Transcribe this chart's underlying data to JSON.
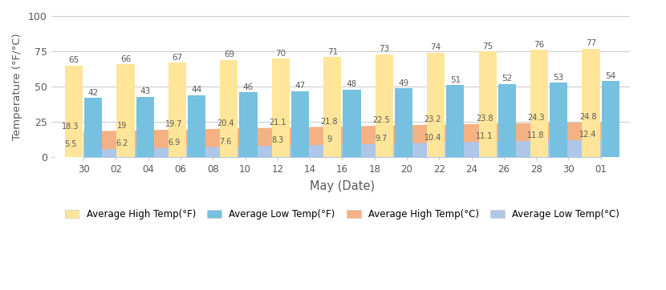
{
  "xtick_labels": [
    "30",
    "02",
    "04",
    "06",
    "08",
    "10",
    "12",
    "14",
    "16",
    "18",
    "20",
    "22",
    "24",
    "26",
    "28",
    "30",
    "01"
  ],
  "high_f": [
    65,
    66,
    67,
    69,
    70,
    71,
    73,
    74,
    75,
    76,
    77
  ],
  "low_f": [
    42,
    43,
    44,
    46,
    47,
    48,
    49,
    51,
    52,
    53,
    54
  ],
  "high_c": [
    18.3,
    19.0,
    19.7,
    20.4,
    21.1,
    21.8,
    22.5,
    23.2,
    23.8,
    24.3,
    24.8
  ],
  "low_c": [
    5.5,
    6.2,
    6.9,
    7.6,
    8.3,
    9.0,
    9.7,
    10.4,
    11.1,
    11.8,
    12.4
  ],
  "color_high_f": "#FFE599",
  "color_low_f": "#76C0E0",
  "color_high_c": "#F4B183",
  "color_low_c": "#AEC6E8",
  "ylabel": "Temperature (°F/°C)",
  "xlabel": "May (Date)",
  "ylim": [
    0,
    100
  ],
  "yticks": [
    0,
    25,
    50,
    75,
    100
  ],
  "legend_labels": [
    "Average High Temp(°F)",
    "Average Low Temp(°F)",
    "Average High Temp(°C)",
    "Average Low Temp(°C)"
  ]
}
